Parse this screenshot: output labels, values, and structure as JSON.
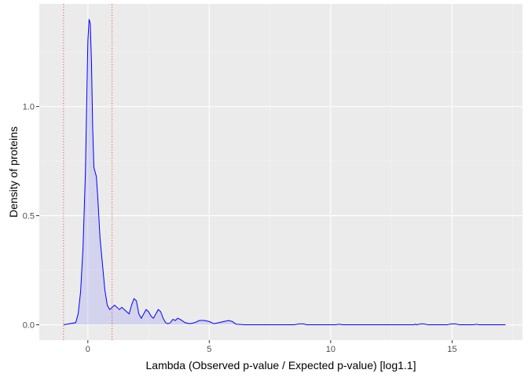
{
  "chart_data": {
    "type": "area",
    "title": "",
    "xlabel": "Lambda (Observed p-value / Expected p-value) [log1.1]",
    "ylabel": "Density of proteins",
    "xlim": [
      -2.0,
      17.9
    ],
    "ylim": [
      -0.07,
      1.47
    ],
    "x_ticks": [
      0,
      5,
      10,
      15
    ],
    "x_tick_labels": [
      "0",
      "5",
      "10",
      "15"
    ],
    "y_ticks": [
      0.0,
      0.5,
      1.0
    ],
    "y_tick_labels": [
      "0.0",
      "0.5",
      "1.0"
    ],
    "grid": true,
    "legend": "none",
    "colors": {
      "panel_background": "#ebebeb",
      "grid_major": "#ffffff",
      "grid_minor": "#f5f5f5",
      "density_line": "#0000ff",
      "density_fill": "#0000ff",
      "density_fill_opacity": 0.1,
      "reference_line": "#ff0000"
    },
    "reference_lines_x": [
      -1,
      1
    ],
    "series": [
      {
        "x": [
          -1.0,
          -0.5,
          -0.4,
          -0.3,
          -0.2,
          -0.1,
          -0.05,
          0.0,
          0.05,
          0.1,
          0.15,
          0.2,
          0.25,
          0.3,
          0.35,
          0.4,
          0.45,
          0.5,
          0.6,
          0.7,
          0.8,
          0.9,
          1.0,
          1.1,
          1.2,
          1.3,
          1.4,
          1.5,
          1.6,
          1.7,
          1.8,
          1.9,
          2.0,
          2.1,
          2.2,
          2.3,
          2.4,
          2.5,
          2.6,
          2.7,
          2.8,
          2.9,
          3.0,
          3.1,
          3.2,
          3.3,
          3.4,
          3.5,
          3.6,
          3.7,
          3.8,
          4.0,
          4.2,
          4.4,
          4.6,
          4.8,
          5.0,
          5.2,
          5.4,
          5.6,
          5.8,
          5.95,
          6.1,
          6.5,
          7.0,
          8.5,
          8.7,
          8.9,
          9.0,
          10.2,
          10.35,
          10.5,
          13.45,
          13.5,
          13.55,
          13.7,
          13.85,
          14.0,
          14.8,
          14.95,
          15.15,
          15.3,
          15.9,
          16.0,
          16.1,
          17.2
        ],
        "y": [
          0.0,
          0.01,
          0.05,
          0.15,
          0.35,
          0.7,
          1.0,
          1.3,
          1.4,
          1.38,
          1.2,
          0.9,
          0.72,
          0.7,
          0.68,
          0.6,
          0.5,
          0.4,
          0.28,
          0.16,
          0.09,
          0.07,
          0.08,
          0.09,
          0.08,
          0.07,
          0.08,
          0.07,
          0.06,
          0.05,
          0.09,
          0.12,
          0.11,
          0.05,
          0.03,
          0.05,
          0.07,
          0.06,
          0.04,
          0.03,
          0.05,
          0.07,
          0.06,
          0.03,
          0.01,
          0.005,
          0.01,
          0.025,
          0.02,
          0.03,
          0.025,
          0.01,
          0.005,
          0.01,
          0.02,
          0.02,
          0.015,
          0.005,
          0.01,
          0.015,
          0.02,
          0.015,
          0.003,
          0.0,
          0.0,
          0.0,
          0.004,
          0.004,
          0.0,
          0.0,
          0.003,
          0.0,
          0.0,
          0.004,
          0.0,
          0.004,
          0.004,
          0.0,
          0.0,
          0.004,
          0.004,
          0.0,
          0.0,
          0.003,
          0.0,
          0.0
        ]
      }
    ]
  }
}
